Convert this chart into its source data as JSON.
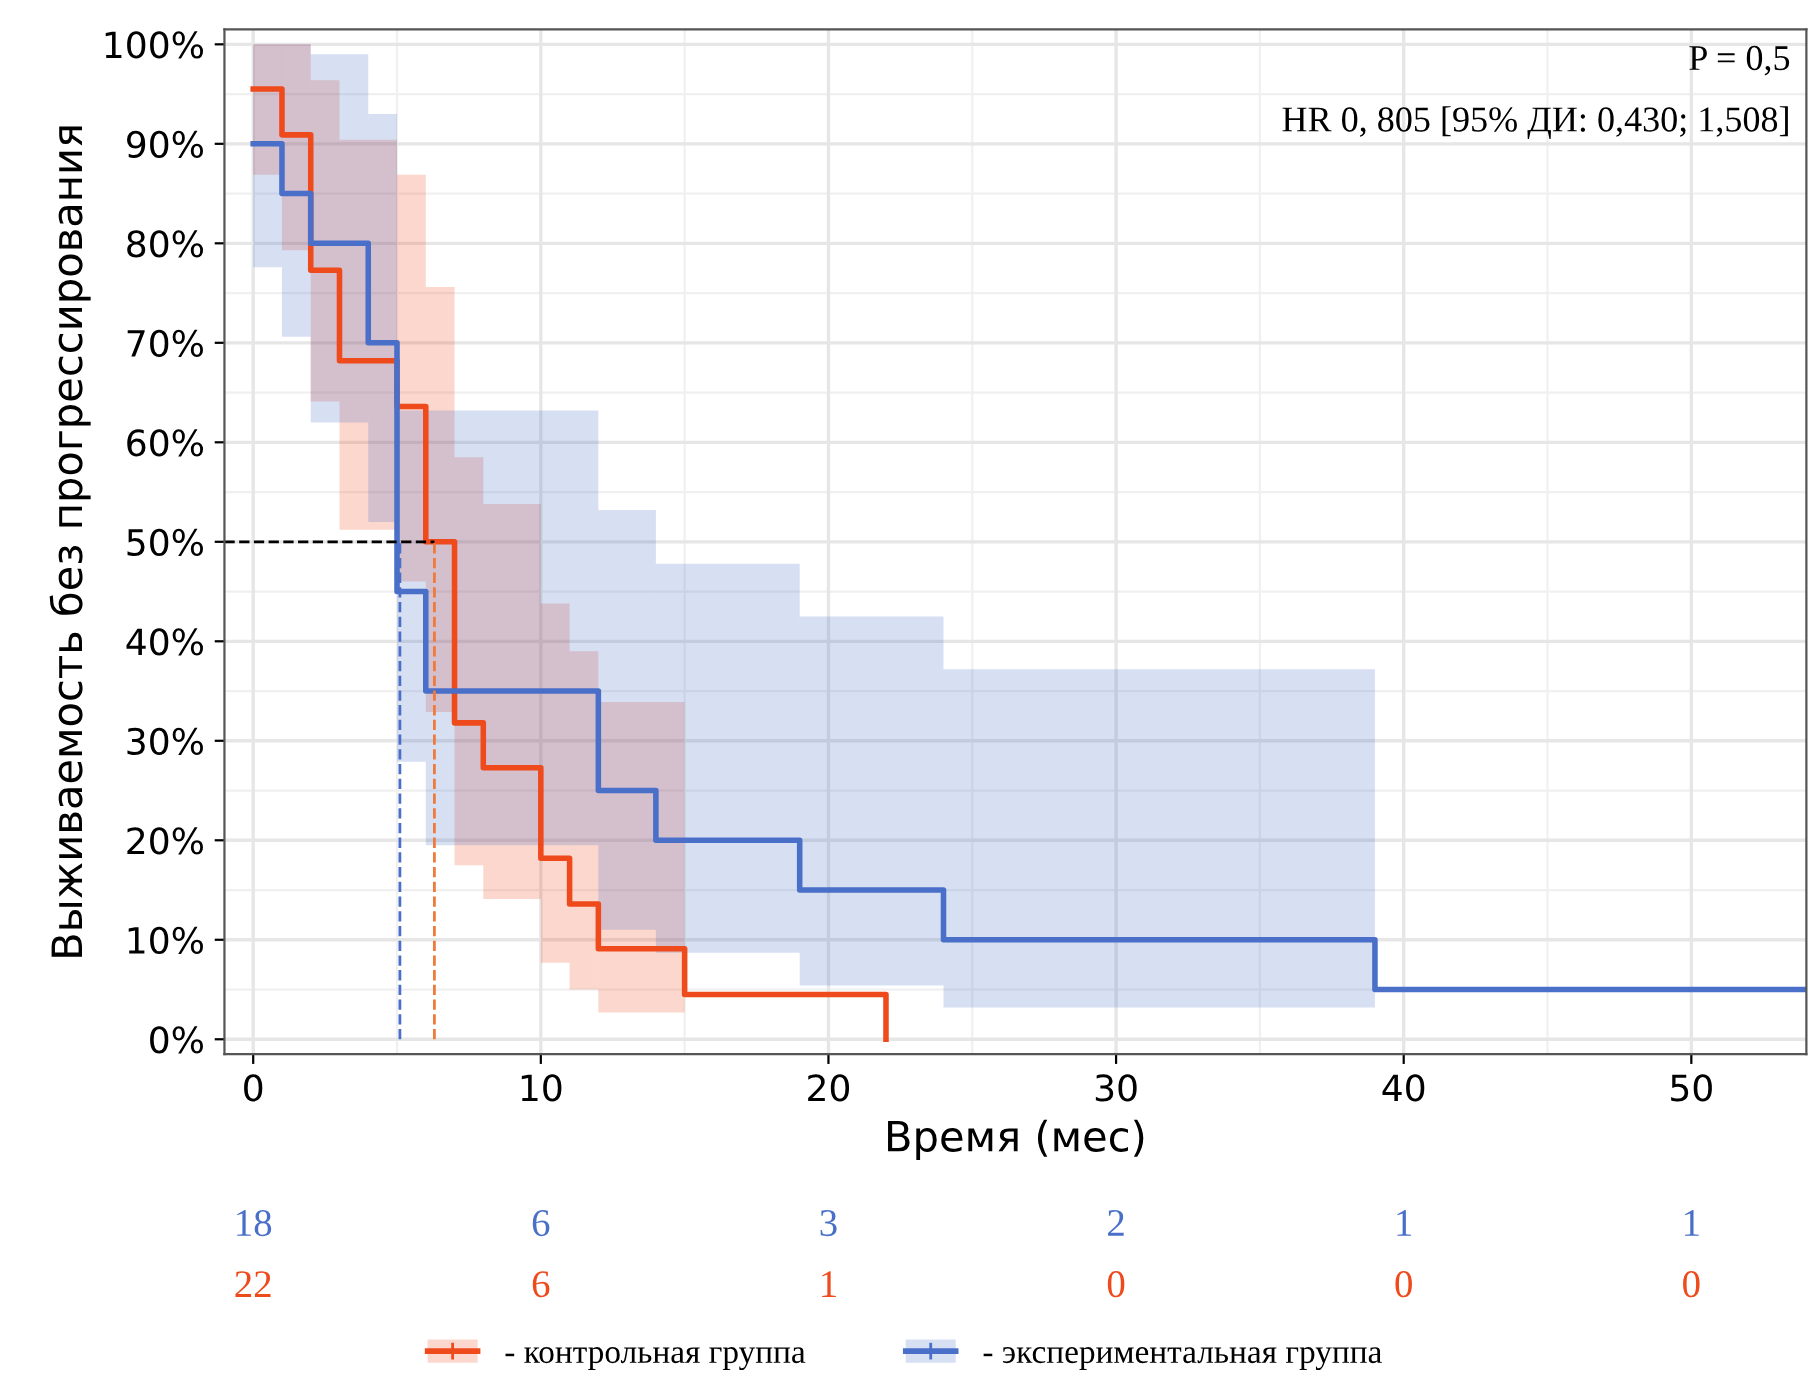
{
  "chart_data": {
    "type": "step",
    "xlabel": "Время (мес)",
    "ylabel": "Выживаемость без прогрессирования",
    "xlim": [
      -1,
      54
    ],
    "ylim": [
      -1.5,
      101.5
    ],
    "xticks": [
      0,
      10,
      20,
      30,
      40,
      50
    ],
    "yticks": [
      {
        "value": 0,
        "label": "0%"
      },
      {
        "value": 10,
        "label": "10%"
      },
      {
        "value": 20,
        "label": "20%"
      },
      {
        "value": 30,
        "label": "30%"
      },
      {
        "value": 40,
        "label": "40%"
      },
      {
        "value": 50,
        "label": "50%"
      },
      {
        "value": 60,
        "label": "60%"
      },
      {
        "value": 70,
        "label": "70%"
      },
      {
        "value": 80,
        "label": "80%"
      },
      {
        "value": 90,
        "label": "90%"
      },
      {
        "value": 100,
        "label": "100%"
      }
    ],
    "grid": true,
    "legend": "bottom",
    "series": [
      {
        "name": "- контрольная группа",
        "color": "#ee4a1c",
        "x": [
          0,
          1,
          2,
          3,
          5,
          6,
          7,
          8,
          10,
          11,
          12,
          15,
          22
        ],
        "values": [
          95.5,
          90.9,
          77.3,
          68.2,
          63.6,
          50,
          31.8,
          27.3,
          18.2,
          13.6,
          9.1,
          4.5,
          0
        ],
        "lower": [
          86.9,
          79.3,
          64.1,
          51.2,
          46,
          32.9,
          17.5,
          14.1,
          7.7,
          5,
          2.7,
          2.7,
          null
        ],
        "upper": [
          100,
          100,
          96.4,
          90.4,
          86.9,
          75.6,
          58.5,
          53.8,
          43.8,
          39,
          33.9,
          33.9,
          null
        ]
      },
      {
        "name": "- экспериментальная группа",
        "color": "#4a6fc8",
        "x": [
          0,
          1,
          2,
          4,
          5,
          6,
          12,
          14,
          19,
          24,
          39,
          54
        ],
        "values": [
          90,
          85,
          80,
          70,
          45,
          35,
          25,
          20,
          15,
          10,
          5,
          5
        ],
        "lower": [
          77.6,
          70.6,
          62,
          52,
          27.9,
          19.5,
          11,
          8.7,
          5.4,
          3.2,
          3.2,
          null
        ],
        "upper": [
          100,
          100,
          99,
          93,
          63.2,
          63.2,
          53.2,
          47.8,
          42.5,
          37.2,
          37.2,
          null
        ]
      }
    ],
    "ref_lines": [
      {
        "axis": "y",
        "value": 50,
        "color": "#000000",
        "line_style": "dashed"
      },
      {
        "axis": "x",
        "value": 5.1,
        "color": "#4a6fc8",
        "line_style": "dashed"
      },
      {
        "axis": "x",
        "value": 6.3,
        "color": "#ee7a3c",
        "line_style": "dashed"
      }
    ],
    "annotations": [
      "P = 0,5",
      "HR 0, 805 [95% ДИ: 0,430; 1,508]",
      "18",
      "6",
      "3",
      "2",
      "1",
      "1",
      "22",
      "6",
      "1",
      "0",
      "0",
      "0"
    ]
  }
}
